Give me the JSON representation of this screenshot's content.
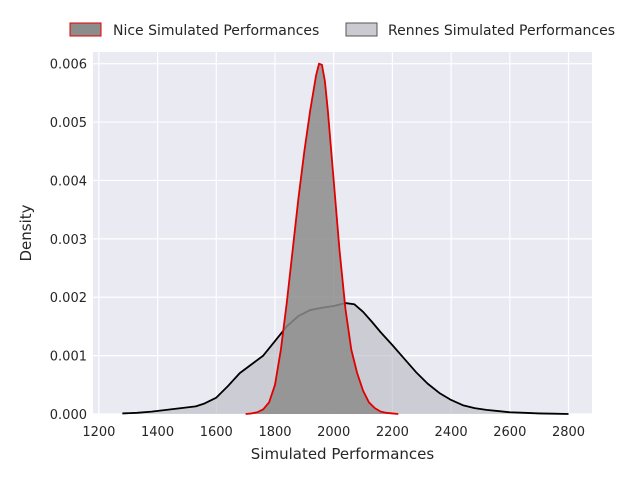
{
  "chart_data": {
    "type": "area",
    "xlabel": "Simulated Performances",
    "ylabel": "Density",
    "xlim": [
      1180,
      2880
    ],
    "ylim": [
      0,
      0.0062
    ],
    "xticks": [
      1200,
      1400,
      1600,
      1800,
      2000,
      2200,
      2400,
      2600,
      2800
    ],
    "yticks": [
      0.0,
      0.001,
      0.002,
      0.003,
      0.004,
      0.005,
      0.006
    ],
    "ytick_labels": [
      "0.000",
      "0.001",
      "0.002",
      "0.003",
      "0.004",
      "0.005",
      "0.006"
    ],
    "grid": true,
    "legend_placement": "top",
    "background_color": "#eaeaf2",
    "series": [
      {
        "name": "Nice Simulated Performances",
        "line_color": "#e00000",
        "fill_color": "#8c8c8c",
        "fill_opacity": 0.85,
        "x": [
          1700,
          1720,
          1740,
          1760,
          1780,
          1800,
          1820,
          1840,
          1860,
          1880,
          1900,
          1920,
          1940,
          1950,
          1960,
          1970,
          1980,
          1990,
          2000,
          2020,
          2040,
          2060,
          2080,
          2100,
          2120,
          2140,
          2160,
          2180,
          2200,
          2220
        ],
        "y": [
          0,
          1e-05,
          3e-05,
          8e-05,
          0.0002,
          0.0005,
          0.0011,
          0.0019,
          0.0028,
          0.0037,
          0.0045,
          0.0052,
          0.0058,
          0.006,
          0.00598,
          0.0057,
          0.0052,
          0.0046,
          0.004,
          0.0028,
          0.0018,
          0.0011,
          0.0007,
          0.0004,
          0.0002,
          0.0001,
          4e-05,
          2e-05,
          1e-05,
          0
        ]
      },
      {
        "name": "Rennes Simulated Performances",
        "line_color": "#000000",
        "fill_color": "#b8b8c0",
        "fill_opacity": 0.6,
        "x": [
          1280,
          1330,
          1380,
          1430,
          1480,
          1530,
          1560,
          1600,
          1640,
          1680,
          1720,
          1760,
          1800,
          1840,
          1880,
          1920,
          1960,
          2000,
          2040,
          2070,
          2100,
          2130,
          2160,
          2200,
          2240,
          2280,
          2320,
          2360,
          2400,
          2440,
          2480,
          2520,
          2560,
          2600,
          2650,
          2700,
          2750,
          2800
        ],
        "y": [
          1e-05,
          2e-05,
          4e-05,
          7e-05,
          0.0001,
          0.00013,
          0.00018,
          0.00028,
          0.00048,
          0.0007,
          0.00085,
          0.001,
          0.00125,
          0.0015,
          0.00168,
          0.00178,
          0.00182,
          0.00185,
          0.0019,
          0.00188,
          0.00175,
          0.00158,
          0.0014,
          0.00118,
          0.00095,
          0.00072,
          0.00052,
          0.00036,
          0.00024,
          0.00015,
          0.0001,
          7e-05,
          5e-05,
          3e-05,
          2e-05,
          1e-05,
          5e-06,
          0
        ]
      }
    ]
  }
}
